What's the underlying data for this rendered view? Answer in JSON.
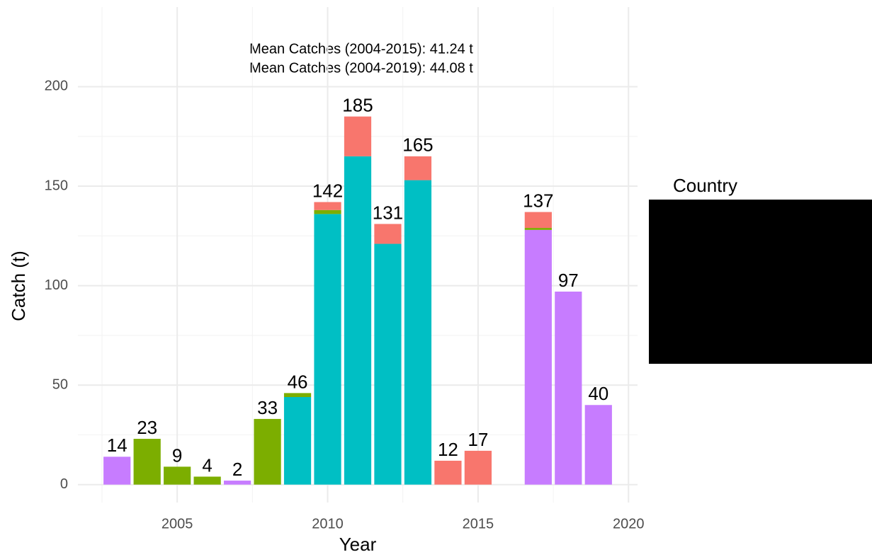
{
  "chart_data": {
    "type": "stacked_bar",
    "annotations": [
      "Mean Catches (2004-2015): 41.24 t",
      "Mean Catches (2004-2019): 44.08 t"
    ],
    "x_label": "Year",
    "y_label": "Catch (t)",
    "legend_title": "Country",
    "x": [
      2003,
      2004,
      2005,
      2006,
      2007,
      2008,
      2009,
      2010,
      2011,
      2012,
      2013,
      2014,
      2015,
      2016,
      2017,
      2018,
      2019
    ],
    "series": [
      {
        "color": "#C77CFF",
        "values": [
          14,
          null,
          null,
          null,
          2,
          null,
          null,
          null,
          null,
          null,
          null,
          null,
          null,
          null,
          128,
          97,
          40
        ]
      },
      {
        "color": "#00BFC4",
        "values": [
          null,
          null,
          null,
          null,
          null,
          null,
          44,
          136,
          165,
          121,
          153,
          null,
          null,
          null,
          null,
          null,
          null
        ]
      },
      {
        "color": "#7CAE00",
        "values": [
          null,
          23,
          9,
          4,
          null,
          33,
          2,
          2,
          null,
          null,
          null,
          null,
          null,
          null,
          1,
          null,
          null
        ]
      },
      {
        "color": "#F8766D",
        "values": [
          null,
          null,
          null,
          null,
          null,
          null,
          null,
          4,
          20,
          10,
          12,
          12,
          17,
          null,
          8,
          null,
          null
        ]
      }
    ],
    "totals": [
      14,
      23,
      9,
      4,
      2,
      33,
      46,
      142,
      185,
      131,
      165,
      12,
      17,
      null,
      137,
      97,
      40
    ],
    "xlim": [
      2001.7,
      2020.3
    ],
    "xticks": [
      2005,
      2010,
      2015,
      2020
    ],
    "ylim": [
      -9,
      240
    ],
    "yticks": [
      0,
      50,
      100,
      150,
      200
    ],
    "grid": true
  }
}
